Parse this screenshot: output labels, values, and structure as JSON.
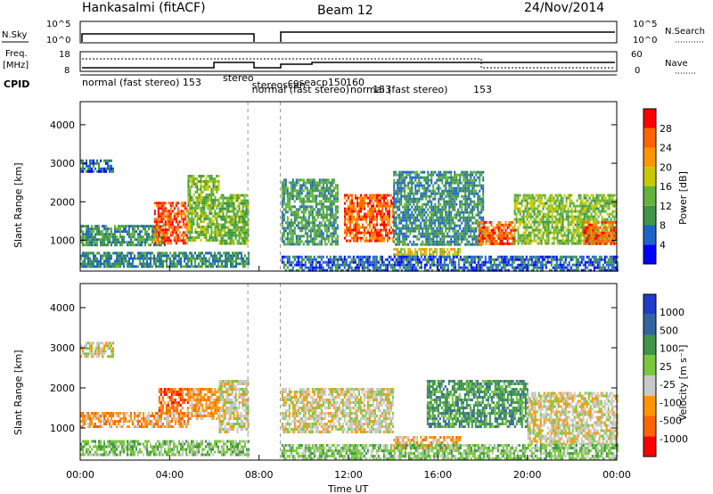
{
  "header": {
    "station": "Hankasalmi (fitACF)",
    "beam": "Beam 12",
    "date": "24/Nov/2014"
  },
  "top_panels": {
    "nsky_label": "N.Sky",
    "nsearch_label": "N.Search",
    "nsky_ticks": [
      "10^5",
      "10^0"
    ],
    "nsearch_ticks": [
      "10^5",
      "10^0"
    ],
    "freq_label_1": "Freq.",
    "freq_label_2": "[MHz]",
    "freq_ticks": [
      "18",
      "8"
    ],
    "nave_label": "Nave",
    "nave_ticks": [
      "60",
      "0"
    ],
    "cpid_label": "CPID",
    "cpid_segments": [
      {
        "text": "normal (fast stereo)  153",
        "start_hour": 0.0
      },
      {
        "text": "stereo",
        "start_hour": 6.3
      },
      {
        "text": "stereoscan",
        "start_hour": 7.6
      },
      {
        "text": "normal (fast stereo)",
        "start_hour": 7.6
      },
      {
        "text": "coseacp",
        "start_hour": 9.2
      },
      {
        "text": "150",
        "start_hour": 11.0
      },
      {
        "text": "160",
        "start_hour": 11.8
      },
      {
        "text": "normal (fast stereo)",
        "start_hour": 12.0
      },
      {
        "text": "153",
        "start_hour": 13.0
      },
      {
        "text": "153",
        "start_hour": 17.5
      }
    ]
  },
  "chart_data": [
    {
      "type": "heatmap",
      "quantity": "Power",
      "xlabel": "",
      "ylabel": "Slant Range [km]",
      "xlim": [
        0,
        24
      ],
      "ylim": [
        200,
        4600
      ],
      "yticks": [
        1000,
        2000,
        3000,
        4000
      ],
      "colorbar": {
        "label": "Power [dB]",
        "min": 0,
        "max": 32,
        "ticks": [
          "28",
          "24",
          "20",
          "16",
          "12",
          "8",
          "4"
        ],
        "tick_values": [
          28,
          24,
          20,
          16,
          12,
          8,
          4
        ],
        "colors": [
          "#0000ff",
          "#1e64c8",
          "#3c9646",
          "#64b43c",
          "#c8c800",
          "#ff9600",
          "#ff6400",
          "#ff0000"
        ]
      },
      "data_gap_hours": [
        7.5,
        8.95
      ],
      "regions": [
        {
          "x": [
            0.0,
            3.8
          ],
          "y": [
            900,
            1400
          ],
          "level": 10
        },
        {
          "x": [
            0.0,
            1.5
          ],
          "y": [
            2800,
            3100
          ],
          "level": 7
        },
        {
          "x": [
            3.3,
            4.8
          ],
          "y": [
            900,
            2000
          ],
          "level": 27
        },
        {
          "x": [
            4.8,
            6.2
          ],
          "y": [
            1000,
            2700
          ],
          "level": 14
        },
        {
          "x": [
            6.2,
            7.5
          ],
          "y": [
            900,
            2200
          ],
          "level": 13
        },
        {
          "x": [
            0.0,
            7.5
          ],
          "y": [
            300,
            700
          ],
          "level": 9
        },
        {
          "x": [
            9.0,
            11.5
          ],
          "y": [
            900,
            2600
          ],
          "level": 11
        },
        {
          "x": [
            11.8,
            14.0
          ],
          "y": [
            1000,
            2200
          ],
          "level": 26
        },
        {
          "x": [
            14.0,
            18.0
          ],
          "y": [
            900,
            2800
          ],
          "level": 9
        },
        {
          "x": [
            14.0,
            17.0
          ],
          "y": [
            600,
            800
          ],
          "level": 18
        },
        {
          "x": [
            17.8,
            19.4
          ],
          "y": [
            900,
            1500
          ],
          "level": 26
        },
        {
          "x": [
            19.4,
            24.0
          ],
          "y": [
            900,
            2200
          ],
          "level": 15
        },
        {
          "x": [
            22.5,
            24.0
          ],
          "y": [
            900,
            1500
          ],
          "level": 26
        },
        {
          "x": [
            9.0,
            24.0
          ],
          "y": [
            250,
            600
          ],
          "level": 6
        }
      ]
    },
    {
      "type": "heatmap",
      "quantity": "Velocity",
      "xlabel": "Time UT",
      "ylabel": "Slant Range [km]",
      "xlim": [
        0,
        24
      ],
      "ylim": [
        200,
        4600
      ],
      "yticks": [
        1000,
        2000,
        3000,
        4000
      ],
      "xticks": [
        "00:00",
        "04:00",
        "08:00",
        "12:00",
        "16:00",
        "20:00",
        "00:00"
      ],
      "xtick_values": [
        0,
        4,
        8,
        12,
        16,
        20,
        24
      ],
      "colorbar": {
        "label": "Velocity [m s⁻¹]",
        "ticks": [
          "1000",
          "500",
          "100",
          "25",
          "-25",
          "-100",
          "-500",
          "-1000"
        ],
        "colors": [
          "#ff0000",
          "#ff6400",
          "#ff9600",
          "#c8c8c8",
          "#78c83c",
          "#3c9646",
          "#3264a0",
          "#1e3cc8"
        ]
      },
      "data_gap_hours": [
        7.5,
        8.95
      ],
      "regions": [
        {
          "x": [
            0.0,
            1.5
          ],
          "y": [
            2800,
            3150
          ],
          "level": 3
        },
        {
          "x": [
            0.0,
            4.8
          ],
          "y": [
            1000,
            1400
          ],
          "level": 2
        },
        {
          "x": [
            3.5,
            4.8
          ],
          "y": [
            1400,
            2000
          ],
          "level": 1
        },
        {
          "x": [
            4.8,
            6.2
          ],
          "y": [
            1200,
            2000
          ],
          "level": 2
        },
        {
          "x": [
            6.2,
            7.5
          ],
          "y": [
            900,
            2200
          ],
          "level": 3
        },
        {
          "x": [
            0.0,
            7.5
          ],
          "y": [
            300,
            700
          ],
          "level": 4
        },
        {
          "x": [
            9.0,
            14.0
          ],
          "y": [
            900,
            2000
          ],
          "level": 3
        },
        {
          "x": [
            14.0,
            17.0
          ],
          "y": [
            500,
            800
          ],
          "level": 2
        },
        {
          "x": [
            15.5,
            20.0
          ],
          "y": [
            1000,
            2200
          ],
          "level": 5
        },
        {
          "x": [
            20.0,
            24.0
          ],
          "y": [
            600,
            1900
          ],
          "level": 3
        },
        {
          "x": [
            9.0,
            24.0
          ],
          "y": [
            250,
            600
          ],
          "level": 4
        }
      ]
    }
  ]
}
